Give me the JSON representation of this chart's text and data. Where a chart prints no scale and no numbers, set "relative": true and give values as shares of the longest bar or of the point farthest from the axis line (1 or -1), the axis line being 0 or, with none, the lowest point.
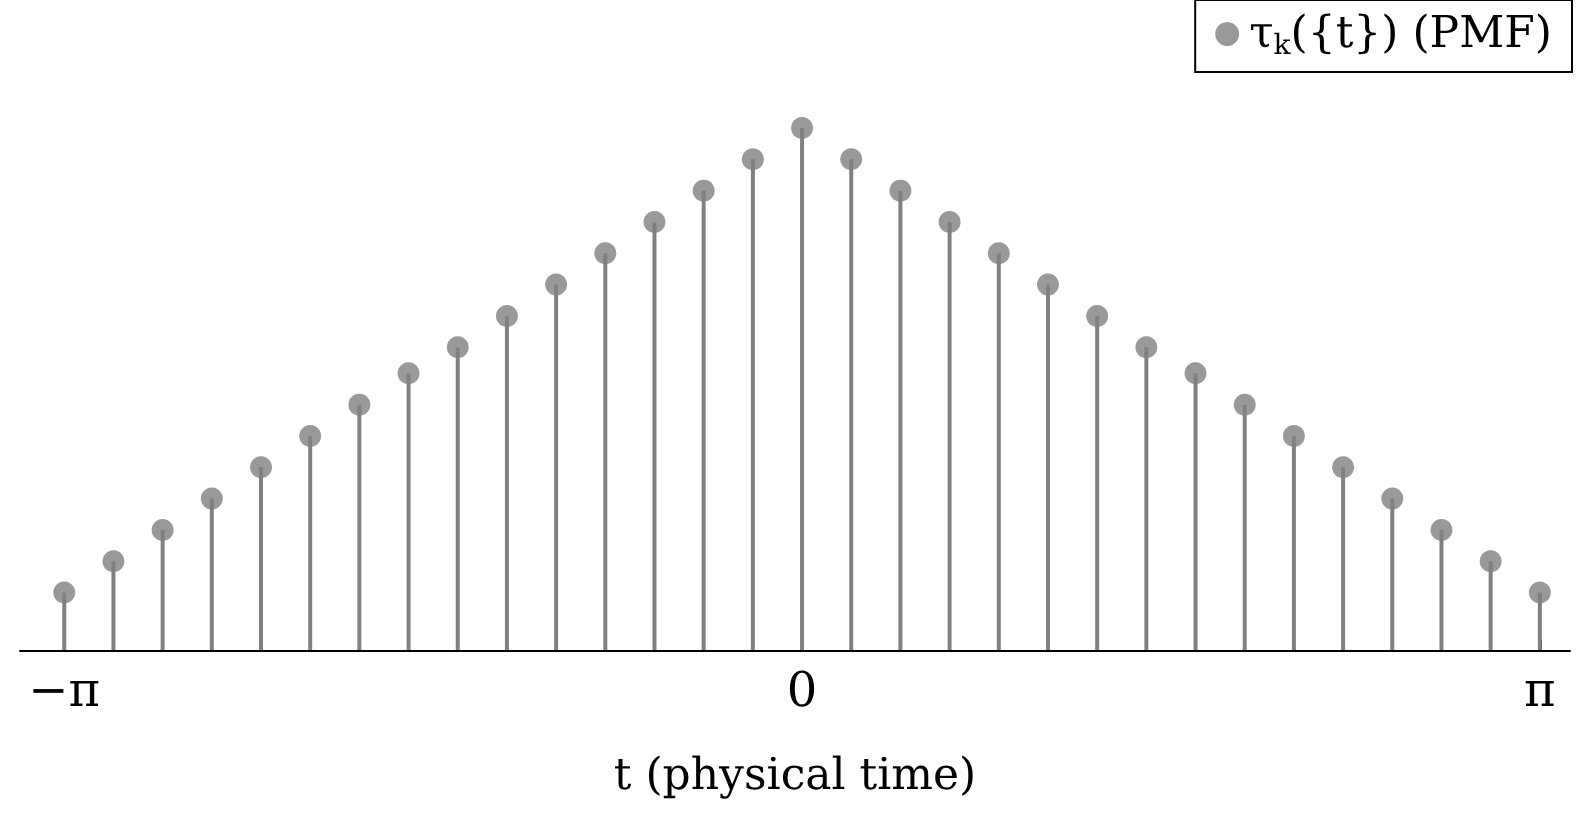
{
  "chart_data": {
    "type": "lollipop",
    "relative": true,
    "xlabel": "t (physical time)",
    "x": [
      -3.1416,
      -2.9322,
      -2.7227,
      -2.5133,
      -2.3038,
      -2.0944,
      -1.885,
      -1.6755,
      -1.4661,
      -1.2566,
      -1.0472,
      -0.8378,
      -0.6283,
      -0.4189,
      -0.2094,
      0,
      0.2094,
      0.4189,
      0.6283,
      0.8378,
      1.0472,
      1.2566,
      1.4661,
      1.6755,
      1.885,
      2.0944,
      2.3038,
      2.5133,
      2.7227,
      2.9322,
      3.1416
    ],
    "series": [
      {
        "name": "τ$_{k}$({t}) (PMF)",
        "color": "#808080",
        "values": [
          0.11,
          0.17,
          0.23,
          0.29,
          0.35,
          0.41,
          0.47,
          0.53,
          0.58,
          0.64,
          0.7,
          0.76,
          0.82,
          0.88,
          0.94,
          1,
          0.94,
          0.88,
          0.82,
          0.76,
          0.7,
          0.64,
          0.58,
          0.53,
          0.47,
          0.41,
          0.35,
          0.29,
          0.23,
          0.17,
          0.11
        ]
      }
    ],
    "xlim": [
      -3.33,
      3.27
    ],
    "xticks": [
      {
        "value": -3.1416,
        "label": "−π"
      },
      {
        "value": 0,
        "label": "0"
      },
      {
        "value": 3.1416,
        "label": "π"
      }
    ],
    "legend": "top right",
    "marker": "circle",
    "grid": false
  }
}
